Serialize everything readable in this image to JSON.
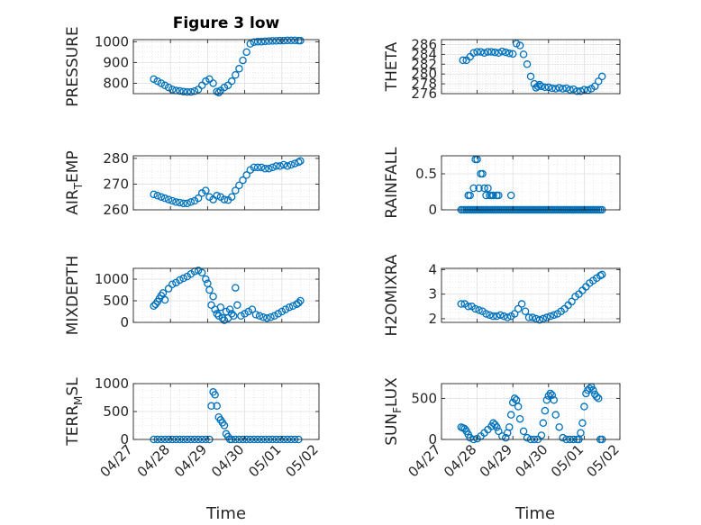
{
  "figure": {
    "title": "Figure 3 low",
    "xlabel": "Time",
    "marker_color": "#0072BD",
    "axis_color": "#262626",
    "grid_color": "#e0e0e0"
  },
  "chart_data": [
    {
      "type": "scatter",
      "ylabel": "PRESSURE",
      "xlim": [
        "2006-04-27",
        "2006-05-02"
      ],
      "xticks": [
        "04/27",
        "04/28",
        "04/29",
        "04/30",
        "05/01",
        "05/02"
      ],
      "ylim": [
        750,
        1010
      ],
      "yticks": [
        800,
        900,
        1000
      ],
      "grid": true,
      "x_days": [
        0.55,
        0.65,
        0.75,
        0.85,
        0.95,
        1.05,
        1.15,
        1.25,
        1.35,
        1.45,
        1.55,
        1.65,
        1.75,
        1.85,
        1.95,
        2.05,
        2.15,
        2.25,
        2.3,
        2.35,
        2.45,
        2.55,
        2.65,
        2.75,
        2.85,
        2.95,
        3.05,
        3.15,
        3.25,
        3.35,
        3.45,
        3.55,
        3.65,
        3.75,
        3.85,
        3.95,
        4.05,
        4.15,
        4.25,
        4.35,
        4.45,
        4.5
      ],
      "y": [
        820,
        810,
        800,
        790,
        780,
        770,
        765,
        763,
        760,
        758,
        758,
        762,
        770,
        790,
        810,
        820,
        800,
        760,
        755,
        765,
        780,
        790,
        810,
        840,
        870,
        910,
        950,
        990,
        998,
        1000,
        1000,
        1002,
        1003,
        1004,
        1004,
        1005,
        1005,
        1006,
        1006,
        1006,
        1005,
        1005
      ]
    },
    {
      "type": "scatter",
      "ylabel": "THETA",
      "xlim": [
        "2006-04-27",
        "2006-05-02"
      ],
      "xticks": [
        "04/27",
        "04/28",
        "04/29",
        "04/30",
        "05/01",
        "05/02"
      ],
      "ylim": [
        276,
        287
      ],
      "yticks": [
        276,
        278,
        280,
        282,
        284,
        286
      ],
      "grid": true,
      "x_days": [
        0.6,
        0.7,
        0.8,
        0.9,
        1.0,
        1.1,
        1.2,
        1.3,
        1.4,
        1.5,
        1.6,
        1.7,
        1.8,
        1.9,
        2.0,
        2.1,
        2.2,
        2.3,
        2.4,
        2.5,
        2.6,
        2.65,
        2.7,
        2.75,
        2.8,
        2.9,
        3.0,
        3.1,
        3.2,
        3.3,
        3.4,
        3.5,
        3.6,
        3.7,
        3.8,
        3.9,
        4.0,
        4.1,
        4.2,
        4.3,
        4.4,
        4.5
      ],
      "y": [
        282.8,
        282.8,
        283.5,
        284.3,
        284.5,
        284.5,
        284.3,
        284.5,
        284.5,
        284.4,
        284.3,
        284.6,
        284.4,
        284.2,
        284.1,
        286.2,
        285.8,
        284.0,
        282.0,
        279.5,
        278.0,
        277.2,
        277.5,
        277.8,
        277.5,
        277.3,
        277.3,
        277.1,
        277.0,
        277.2,
        277.0,
        277.1,
        276.8,
        276.9,
        276.5,
        276.5,
        276.8,
        276.7,
        277.0,
        277.5,
        278.5,
        279.5
      ]
    },
    {
      "type": "scatter",
      "ylabel": "AIR_TEMP",
      "ylabel_main": "AIR",
      "ylabel_sub": "T",
      "ylabel_rest": "EMP",
      "xlim": [
        "2006-04-27",
        "2006-05-02"
      ],
      "xticks": [
        "04/27",
        "04/28",
        "04/29",
        "04/30",
        "05/01",
        "05/02"
      ],
      "ylim": [
        260,
        281
      ],
      "yticks": [
        260,
        270,
        280
      ],
      "grid": true,
      "x_days": [
        0.55,
        0.65,
        0.75,
        0.85,
        0.95,
        1.05,
        1.15,
        1.25,
        1.35,
        1.45,
        1.55,
        1.65,
        1.75,
        1.85,
        1.95,
        2.05,
        2.15,
        2.25,
        2.35,
        2.45,
        2.55,
        2.65,
        2.75,
        2.85,
        2.95,
        3.05,
        3.15,
        3.25,
        3.35,
        3.45,
        3.55,
        3.65,
        3.75,
        3.85,
        3.95,
        4.05,
        4.15,
        4.25,
        4.35,
        4.45,
        4.5
      ],
      "y": [
        266,
        265.5,
        265,
        264.5,
        264,
        263.5,
        263,
        262.8,
        262.5,
        262.5,
        263,
        263.5,
        264.5,
        266.5,
        267.5,
        265,
        264,
        265.5,
        265,
        264,
        263.8,
        265,
        267.5,
        269.5,
        271.5,
        273.5,
        275.5,
        276.5,
        276.5,
        276.5,
        276,
        276,
        276.5,
        277,
        277,
        277.5,
        277,
        277.5,
        278,
        278.5,
        279
      ]
    },
    {
      "type": "scatter",
      "ylabel": "RAINFALL",
      "xlim": [
        "2006-04-27",
        "2006-05-02"
      ],
      "xticks": [
        "04/27",
        "04/28",
        "04/29",
        "04/30",
        "05/01",
        "05/02"
      ],
      "ylim": [
        0,
        0.75
      ],
      "yticks": [
        0,
        0.5
      ],
      "ytick_labels": [
        "0",
        "0.5"
      ],
      "grid": true,
      "x_days": [
        0.55,
        0.6,
        0.65,
        0.7,
        0.75,
        0.8,
        0.85,
        0.9,
        0.95,
        1.0,
        1.05,
        1.1,
        1.15,
        1.2,
        1.25,
        1.3,
        1.35,
        1.4,
        1.45,
        1.5,
        1.55,
        1.6,
        1.65,
        1.7,
        1.75,
        1.8,
        1.85,
        1.9,
        1.95,
        2.0,
        2.05,
        2.1,
        2.15,
        2.2,
        2.25,
        2.3,
        2.35,
        2.4,
        2.45,
        2.5,
        2.55,
        2.6,
        2.65,
        2.7,
        2.75,
        2.8,
        2.85,
        2.9,
        2.95,
        3.0,
        3.05,
        3.1,
        3.15,
        3.2,
        3.25,
        3.3,
        3.35,
        3.4,
        3.45,
        3.5,
        3.55,
        3.6,
        3.65,
        3.7,
        3.75,
        3.8,
        3.85,
        3.9,
        3.95,
        4.0,
        4.05,
        4.1,
        4.15,
        4.2,
        4.25,
        4.3,
        4.35,
        4.4,
        4.45,
        4.5,
        0.75,
        0.8,
        0.9,
        0.95,
        1.0,
        1.05,
        1.1,
        1.15,
        1.2,
        1.25,
        1.3,
        1.35,
        1.4,
        1.45,
        1.55,
        1.6,
        1.95
      ],
      "y": [
        0,
        0,
        0,
        0,
        0,
        0,
        0,
        0,
        0,
        0,
        0,
        0,
        0,
        0,
        0,
        0,
        0,
        0,
        0,
        0,
        0,
        0,
        0,
        0,
        0,
        0,
        0,
        0,
        0,
        0,
        0,
        0,
        0,
        0,
        0,
        0,
        0,
        0,
        0,
        0,
        0,
        0,
        0,
        0,
        0,
        0,
        0,
        0,
        0,
        0,
        0,
        0,
        0,
        0,
        0,
        0,
        0,
        0,
        0,
        0,
        0,
        0,
        0,
        0,
        0,
        0,
        0,
        0,
        0,
        0,
        0,
        0,
        0,
        0,
        0,
        0,
        0,
        0,
        0,
        0,
        0.2,
        0.2,
        0.3,
        0.7,
        0.7,
        0.3,
        0.5,
        0.5,
        0.3,
        0.2,
        0.3,
        0.2,
        0.2,
        0.2,
        0.2,
        0.2,
        0.2
      ]
    },
    {
      "type": "scatter",
      "ylabel": "MIXDEPTH",
      "xlim": [
        "2006-04-27",
        "2006-05-02"
      ],
      "xticks": [
        "04/27",
        "04/28",
        "04/29",
        "04/30",
        "05/01",
        "05/02"
      ],
      "ylim": [
        0,
        1250
      ],
      "yticks": [
        0,
        500,
        1000
      ],
      "grid": true,
      "x_days": [
        0.55,
        0.6,
        0.65,
        0.7,
        0.75,
        0.8,
        0.85,
        0.95,
        1.05,
        1.15,
        1.25,
        1.35,
        1.45,
        1.55,
        1.65,
        1.75,
        1.85,
        1.95,
        2.0,
        2.05,
        2.1,
        2.15,
        2.2,
        2.25,
        2.3,
        2.35,
        2.4,
        2.45,
        2.5,
        2.55,
        2.6,
        2.65,
        2.7,
        2.75,
        2.8,
        2.9,
        3.0,
        3.1,
        3.2,
        3.3,
        3.4,
        3.5,
        3.6,
        3.7,
        3.8,
        3.9,
        4.0,
        4.1,
        4.2,
        4.3,
        4.4,
        4.45,
        4.5
      ],
      "y": [
        380,
        420,
        480,
        550,
        620,
        680,
        520,
        780,
        880,
        920,
        980,
        1020,
        1060,
        1120,
        1180,
        1200,
        1150,
        1000,
        900,
        750,
        400,
        600,
        300,
        200,
        150,
        350,
        100,
        50,
        250,
        100,
        300,
        200,
        150,
        800,
        400,
        150,
        200,
        250,
        300,
        180,
        150,
        120,
        100,
        120,
        150,
        200,
        250,
        300,
        350,
        380,
        420,
        450,
        500
      ]
    },
    {
      "type": "scatter",
      "ylabel": "H2OMIXRA",
      "xlim": [
        "2006-04-27",
        "2006-05-02"
      ],
      "xticks": [
        "04/27",
        "04/28",
        "04/29",
        "04/30",
        "05/01",
        "05/02"
      ],
      "ylim": [
        1.85,
        4.05
      ],
      "yticks": [
        2,
        3,
        4
      ],
      "grid": true,
      "x_days": [
        0.55,
        0.65,
        0.75,
        0.85,
        0.95,
        1.05,
        1.15,
        1.25,
        1.35,
        1.45,
        1.55,
        1.65,
        1.75,
        1.85,
        1.95,
        2.05,
        2.15,
        2.25,
        2.35,
        2.45,
        2.55,
        2.65,
        2.75,
        2.85,
        2.95,
        3.05,
        3.15,
        3.25,
        3.35,
        3.45,
        3.55,
        3.65,
        3.75,
        3.85,
        3.95,
        4.05,
        4.15,
        4.25,
        4.35,
        4.45,
        4.5
      ],
      "y": [
        2.6,
        2.6,
        2.5,
        2.5,
        2.4,
        2.35,
        2.3,
        2.2,
        2.15,
        2.1,
        2.1,
        2.15,
        2.1,
        2.05,
        2.1,
        2.2,
        2.4,
        2.6,
        2.3,
        2.05,
        2.05,
        2.0,
        1.95,
        2.0,
        2.05,
        2.1,
        2.15,
        2.2,
        2.3,
        2.4,
        2.55,
        2.7,
        2.9,
        3.0,
        3.15,
        3.3,
        3.45,
        3.55,
        3.65,
        3.75,
        3.8
      ]
    },
    {
      "type": "scatter",
      "ylabel": "TERR_MSL",
      "ylabel_main": "TERR",
      "ylabel_sub": "M",
      "ylabel_rest": "SL",
      "xlim": [
        "2006-04-27",
        "2006-05-02"
      ],
      "xticks": [
        "04/27",
        "04/28",
        "04/29",
        "04/30",
        "05/01",
        "05/02"
      ],
      "ylim": [
        0,
        1000
      ],
      "yticks": [
        0,
        500,
        1000
      ],
      "grid": true,
      "x_days": [
        0.55,
        0.65,
        0.75,
        0.85,
        0.95,
        1.05,
        1.15,
        1.25,
        1.35,
        1.45,
        1.55,
        1.65,
        1.75,
        1.85,
        1.95,
        2.05,
        2.1,
        2.15,
        2.2,
        2.25,
        2.3,
        2.35,
        2.4,
        2.45,
        2.5,
        2.55,
        2.6,
        2.65,
        2.75,
        2.85,
        2.95,
        3.05,
        3.15,
        3.25,
        3.35,
        3.45,
        3.55,
        3.65,
        3.75,
        3.85,
        3.95,
        4.05,
        4.15,
        4.25,
        4.35,
        4.45
      ],
      "y": [
        0,
        0,
        0,
        0,
        0,
        0,
        0,
        0,
        0,
        0,
        0,
        0,
        0,
        0,
        0,
        0,
        600,
        850,
        800,
        600,
        400,
        350,
        300,
        250,
        100,
        50,
        0,
        0,
        0,
        0,
        0,
        0,
        0,
        0,
        0,
        0,
        0,
        0,
        0,
        0,
        0,
        0,
        0,
        0,
        0,
        0
      ]
    },
    {
      "type": "scatter",
      "ylabel": "SUN_FLUX",
      "ylabel_main": "SUN",
      "ylabel_sub": "F",
      "ylabel_rest": "LUX",
      "xlim": [
        "2006-04-27",
        "2006-05-02"
      ],
      "xticks": [
        "04/27",
        "04/28",
        "04/29",
        "04/30",
        "05/01",
        "05/02"
      ],
      "ylim": [
        0,
        680
      ],
      "yticks": [
        0,
        500
      ],
      "grid": true,
      "x_days": [
        0.55,
        0.6,
        0.65,
        0.7,
        0.75,
        0.8,
        0.9,
        1.0,
        1.1,
        1.2,
        1.3,
        1.4,
        1.45,
        1.5,
        1.55,
        1.6,
        1.7,
        1.8,
        1.85,
        1.9,
        1.95,
        2.0,
        2.05,
        2.1,
        2.15,
        2.2,
        2.3,
        2.4,
        2.5,
        2.6,
        2.7,
        2.8,
        2.85,
        2.9,
        2.95,
        3.0,
        3.05,
        3.1,
        3.15,
        3.2,
        3.3,
        3.4,
        3.5,
        3.6,
        3.7,
        3.8,
        3.85,
        3.9,
        3.95,
        4.0,
        4.05,
        4.1,
        4.15,
        4.2,
        4.25,
        4.3,
        4.35,
        4.4,
        4.45,
        4.5
      ],
      "y": [
        150,
        140,
        130,
        100,
        60,
        20,
        0,
        10,
        40,
        80,
        120,
        160,
        200,
        180,
        150,
        100,
        40,
        20,
        80,
        150,
        300,
        450,
        500,
        480,
        400,
        250,
        100,
        20,
        0,
        0,
        0,
        50,
        200,
        350,
        480,
        530,
        560,
        540,
        480,
        300,
        150,
        20,
        0,
        0,
        0,
        0,
        0,
        80,
        200,
        400,
        560,
        600,
        620,
        640,
        600,
        550,
        520,
        500,
        0,
        0
      ]
    }
  ]
}
